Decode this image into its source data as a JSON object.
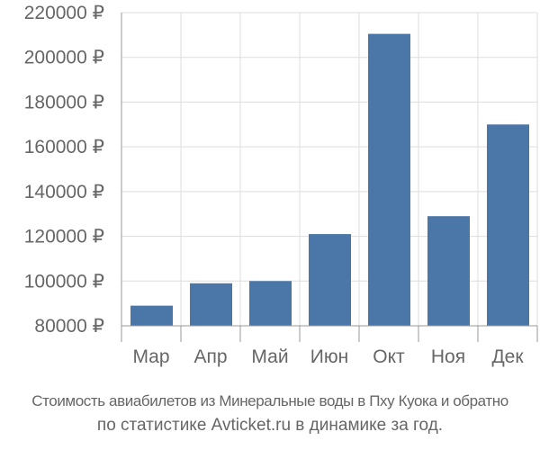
{
  "chart_data": {
    "type": "bar",
    "categories": [
      "Мар",
      "Апр",
      "Май",
      "Июн",
      "Окт",
      "Ноя",
      "Дек"
    ],
    "values": [
      89000,
      99000,
      100000,
      121000,
      210500,
      129000,
      170000
    ],
    "yticks": [
      "80000 ₽",
      "100000 ₽",
      "120000 ₽",
      "140000 ₽",
      "160000 ₽",
      "180000 ₽",
      "200000 ₽",
      "220000 ₽"
    ],
    "ytick_values": [
      80000,
      100000,
      120000,
      140000,
      160000,
      180000,
      200000,
      220000
    ],
    "ylim": [
      80000,
      220000
    ],
    "grid": true,
    "bar_color": "#4a76a8",
    "grid_color": "#dddddd",
    "axis_color": "#999999"
  },
  "caption": {
    "line1": "Стоимость авиабилетов из Минеральные воды в Пху Куока и обратно",
    "line2": "по статистике Avticket.ru в динамике за год."
  }
}
